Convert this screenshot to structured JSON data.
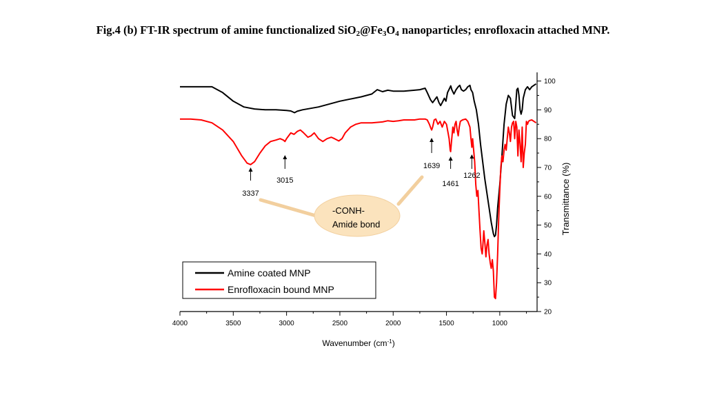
{
  "figure": {
    "title_parts": [
      {
        "t": "Fig.4 (b) FT-IR spectrum of amine functionalized SiO",
        "sub": false
      },
      {
        "t": "2",
        "sub": true
      },
      {
        "t": "@Fe",
        "sub": false
      },
      {
        "t": "3",
        "sub": true
      },
      {
        "t": "O",
        "sub": false
      },
      {
        "t": "4",
        "sub": true
      },
      {
        "t": " nanoparticles; enrofloxacin attached MNP.",
        "sub": false
      }
    ]
  },
  "chart_data": {
    "type": "line",
    "title": "Fig.4 (b) FT-IR spectrum of amine functionalized SiO2@Fe3O4 nanoparticles; enrofloxacin attached MNP.",
    "xlabel": "Wavenumber (cm-1)",
    "xlabel_main": "Wavenumber (cm",
    "xlabel_sup": "-1",
    "xlabel_close": ")",
    "ylabel": "Transmittance (%)",
    "xlim": [
      4000,
      650
    ],
    "ylim": [
      20,
      103
    ],
    "x_ticks": [
      4000,
      3500,
      3000,
      2500,
      2000,
      1500,
      1000
    ],
    "y_ticks": [
      20,
      30,
      40,
      50,
      60,
      70,
      80,
      90,
      100
    ],
    "grid": false,
    "legend_position": "bottom-left",
    "series": [
      {
        "name": "Amine coated MNP",
        "color": "#000000",
        "points": [
          [
            4000,
            98
          ],
          [
            3800,
            98
          ],
          [
            3700,
            98
          ],
          [
            3600,
            96
          ],
          [
            3500,
            93
          ],
          [
            3400,
            91
          ],
          [
            3300,
            90.3
          ],
          [
            3200,
            90
          ],
          [
            3100,
            90
          ],
          [
            3000,
            89.8
          ],
          [
            2960,
            89.6
          ],
          [
            2925,
            89
          ],
          [
            2900,
            89.5
          ],
          [
            2850,
            90
          ],
          [
            2700,
            91
          ],
          [
            2500,
            93
          ],
          [
            2300,
            94.5
          ],
          [
            2200,
            95.5
          ],
          [
            2150,
            97
          ],
          [
            2100,
            96.3
          ],
          [
            2050,
            96.8
          ],
          [
            2000,
            96.5
          ],
          [
            1900,
            96.5
          ],
          [
            1800,
            96.8
          ],
          [
            1750,
            97
          ],
          [
            1700,
            97.5
          ],
          [
            1680,
            96
          ],
          [
            1650,
            93.5
          ],
          [
            1630,
            92.5
          ],
          [
            1610,
            93.5
          ],
          [
            1590,
            94.5
          ],
          [
            1570,
            92.5
          ],
          [
            1555,
            91.5
          ],
          [
            1540,
            92.5
          ],
          [
            1520,
            94
          ],
          [
            1505,
            93
          ],
          [
            1490,
            96
          ],
          [
            1470,
            97.5
          ],
          [
            1460,
            98.3
          ],
          [
            1450,
            97
          ],
          [
            1430,
            95.5
          ],
          [
            1410,
            97
          ],
          [
            1390,
            98
          ],
          [
            1375,
            98.5
          ],
          [
            1360,
            97
          ],
          [
            1340,
            96.5
          ],
          [
            1320,
            97
          ],
          [
            1300,
            98
          ],
          [
            1280,
            98.5
          ],
          [
            1270,
            97
          ],
          [
            1255,
            96
          ],
          [
            1240,
            93
          ],
          [
            1220,
            90
          ],
          [
            1200,
            85
          ],
          [
            1180,
            78
          ],
          [
            1160,
            72
          ],
          [
            1140,
            66
          ],
          [
            1120,
            61
          ],
          [
            1100,
            56
          ],
          [
            1080,
            51
          ],
          [
            1060,
            47
          ],
          [
            1050,
            46
          ],
          [
            1040,
            46.5
          ],
          [
            1030,
            50
          ],
          [
            1020,
            56
          ],
          [
            1000,
            64
          ],
          [
            980,
            74
          ],
          [
            960,
            85
          ],
          [
            940,
            92
          ],
          [
            920,
            95
          ],
          [
            900,
            94
          ],
          [
            880,
            88
          ],
          [
            860,
            87
          ],
          [
            850,
            92
          ],
          [
            840,
            97
          ],
          [
            830,
            97.5
          ],
          [
            820,
            95
          ],
          [
            810,
            90
          ],
          [
            800,
            88.5
          ],
          [
            790,
            90
          ],
          [
            780,
            94
          ],
          [
            760,
            97
          ],
          [
            740,
            98
          ],
          [
            720,
            97
          ],
          [
            700,
            98
          ],
          [
            680,
            98.5
          ],
          [
            660,
            99
          ]
        ]
      },
      {
        "name": "Enrofloxacin bound MNP",
        "color": "#ff0000",
        "points": [
          [
            4000,
            86.8
          ],
          [
            3900,
            86.8
          ],
          [
            3800,
            86.5
          ],
          [
            3700,
            85.5
          ],
          [
            3600,
            83
          ],
          [
            3500,
            79
          ],
          [
            3420,
            74
          ],
          [
            3370,
            71.5
          ],
          [
            3337,
            71
          ],
          [
            3300,
            72
          ],
          [
            3250,
            75
          ],
          [
            3200,
            77.5
          ],
          [
            3150,
            79
          ],
          [
            3100,
            79.5
          ],
          [
            3060,
            80
          ],
          [
            3030,
            79.5
          ],
          [
            3015,
            79
          ],
          [
            3000,
            80
          ],
          [
            2980,
            81
          ],
          [
            2960,
            82
          ],
          [
            2930,
            81.5
          ],
          [
            2900,
            82.5
          ],
          [
            2870,
            83
          ],
          [
            2840,
            82
          ],
          [
            2800,
            80.5
          ],
          [
            2770,
            81
          ],
          [
            2740,
            82
          ],
          [
            2700,
            80
          ],
          [
            2660,
            79
          ],
          [
            2620,
            80
          ],
          [
            2580,
            80.5
          ],
          [
            2550,
            80
          ],
          [
            2510,
            79.2
          ],
          [
            2480,
            80
          ],
          [
            2450,
            82
          ],
          [
            2400,
            84
          ],
          [
            2350,
            85
          ],
          [
            2300,
            85.5
          ],
          [
            2200,
            85.5
          ],
          [
            2100,
            85.8
          ],
          [
            2050,
            86.2
          ],
          [
            2000,
            86
          ],
          [
            1950,
            86.2
          ],
          [
            1900,
            86.5
          ],
          [
            1800,
            86.5
          ],
          [
            1750,
            86.8
          ],
          [
            1700,
            86.8
          ],
          [
            1680,
            86.5
          ],
          [
            1660,
            85
          ],
          [
            1645,
            83.5
          ],
          [
            1639,
            83
          ],
          [
            1630,
            84
          ],
          [
            1615,
            86.5
          ],
          [
            1600,
            86.8
          ],
          [
            1580,
            85
          ],
          [
            1560,
            86
          ],
          [
            1540,
            84
          ],
          [
            1520,
            86
          ],
          [
            1500,
            85
          ],
          [
            1485,
            82
          ],
          [
            1475,
            80
          ],
          [
            1465,
            76
          ],
          [
            1461,
            75.5
          ],
          [
            1455,
            78
          ],
          [
            1440,
            84
          ],
          [
            1430,
            82
          ],
          [
            1420,
            85
          ],
          [
            1410,
            86
          ],
          [
            1400,
            83
          ],
          [
            1390,
            81
          ],
          [
            1380,
            84
          ],
          [
            1370,
            86
          ],
          [
            1350,
            86.5
          ],
          [
            1320,
            86.8
          ],
          [
            1300,
            86
          ],
          [
            1280,
            84
          ],
          [
            1270,
            80
          ],
          [
            1262,
            77
          ],
          [
            1255,
            80
          ],
          [
            1245,
            76
          ],
          [
            1235,
            72
          ],
          [
            1225,
            64
          ],
          [
            1215,
            60
          ],
          [
            1205,
            62
          ],
          [
            1195,
            55
          ],
          [
            1185,
            48
          ],
          [
            1175,
            42
          ],
          [
            1165,
            40
          ],
          [
            1160,
            42
          ],
          [
            1150,
            48
          ],
          [
            1140,
            44
          ],
          [
            1130,
            39
          ],
          [
            1120,
            43
          ],
          [
            1110,
            45
          ],
          [
            1100,
            40
          ],
          [
            1090,
            37
          ],
          [
            1080,
            35
          ],
          [
            1070,
            38
          ],
          [
            1060,
            34
          ],
          [
            1050,
            25
          ],
          [
            1040,
            24.5
          ],
          [
            1030,
            30
          ],
          [
            1020,
            40
          ],
          [
            1010,
            52
          ],
          [
            1000,
            62
          ],
          [
            990,
            70
          ],
          [
            980,
            74
          ],
          [
            970,
            72
          ],
          [
            960,
            76
          ],
          [
            950,
            78
          ],
          [
            940,
            76
          ],
          [
            930,
            80
          ],
          [
            920,
            84
          ],
          [
            910,
            82
          ],
          [
            900,
            79
          ],
          [
            890,
            84
          ],
          [
            880,
            85.5
          ],
          [
            870,
            86
          ],
          [
            860,
            80
          ],
          [
            850,
            86
          ],
          [
            840,
            84
          ],
          [
            830,
            74
          ],
          [
            820,
            83
          ],
          [
            810,
            78
          ],
          [
            800,
            72
          ],
          [
            790,
            84
          ],
          [
            780,
            70
          ],
          [
            770,
            75
          ],
          [
            760,
            78
          ],
          [
            750,
            86
          ],
          [
            740,
            85
          ],
          [
            730,
            86
          ],
          [
            720,
            86.3
          ],
          [
            700,
            86.5
          ],
          [
            680,
            86
          ],
          [
            660,
            85.5
          ]
        ]
      }
    ],
    "peak_labels": [
      {
        "label": "3337",
        "x": 3337,
        "y": 71
      },
      {
        "label": "3015",
        "x": 3015,
        "y": 79
      },
      {
        "label": "1639",
        "x": 1639,
        "y": 83
      },
      {
        "label": "1461",
        "x": 1461,
        "y": 75.5
      },
      {
        "label": "1262",
        "x": 1262,
        "y": 77
      }
    ],
    "callout": {
      "line1": "-CONH-",
      "line2": "Amide bond",
      "fill": "#fbe3bd"
    }
  }
}
